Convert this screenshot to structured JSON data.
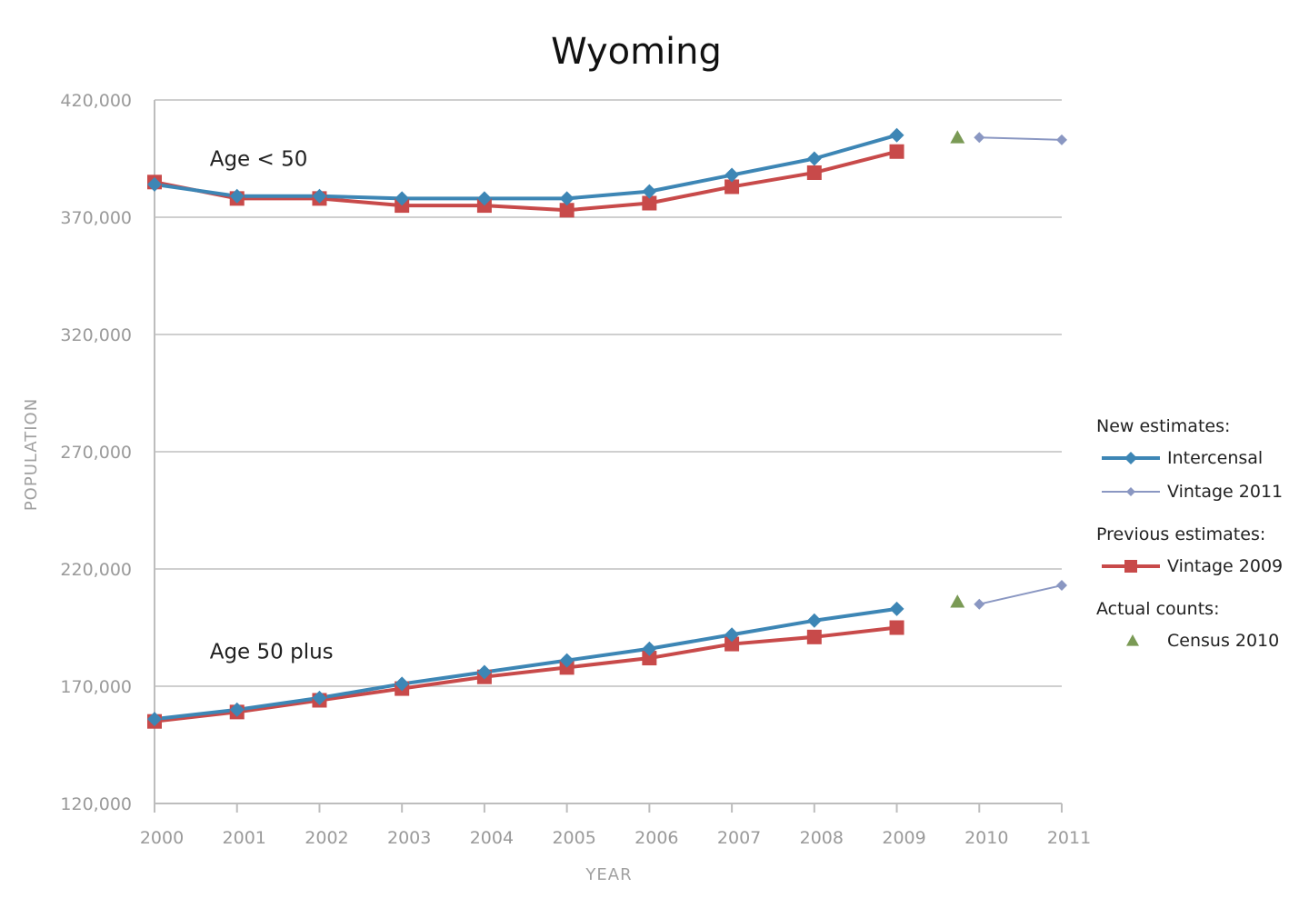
{
  "chart_data": {
    "type": "line",
    "title": "Wyoming",
    "xlabel": "YEAR",
    "ylabel": "POPULATION",
    "x": [
      "2000",
      "2001",
      "2002",
      "2003",
      "2004",
      "2005",
      "2006",
      "2007",
      "2008",
      "2009",
      "2010",
      "2011"
    ],
    "ylim": [
      120000,
      420000
    ],
    "yticks": [
      "420,000",
      "370,000",
      "320,000",
      "270,000",
      "220,000",
      "170,000",
      "120,000"
    ],
    "grid": true,
    "legend_position": "right",
    "legend": {
      "groups": [
        {
          "heading": "New estimates:",
          "items": [
            {
              "label": "Intercensal",
              "series": "intercensal"
            },
            {
              "label": "Vintage 2011",
              "series": "vintage2011"
            }
          ]
        },
        {
          "heading": "Previous estimates:",
          "items": [
            {
              "label": "Vintage 2009",
              "series": "vintage2009"
            }
          ]
        },
        {
          "heading": "Actual counts:",
          "items": [
            {
              "label": "Census 2010",
              "series": "census2010"
            }
          ]
        }
      ]
    },
    "annotations": [
      {
        "text": "Age < 50",
        "x": "2001",
        "y": 395000
      },
      {
        "text": "Age 50 plus",
        "x": "2001",
        "y": 185000
      }
    ],
    "colors": {
      "intercensal": "#3d86b5",
      "vintage2011": "#8a97c2",
      "vintage2009": "#c84a4a",
      "census2010": "#7a9a55",
      "grid": "#cfcfcf",
      "axis": "#bdbdbd"
    },
    "series": [
      {
        "key": "intercensal",
        "name": "Intercensal",
        "group": "Age < 50",
        "points": [
          {
            "x": "2000",
            "y": 384000
          },
          {
            "x": "2001",
            "y": 379000
          },
          {
            "x": "2002",
            "y": 379000
          },
          {
            "x": "2003",
            "y": 378000
          },
          {
            "x": "2004",
            "y": 378000
          },
          {
            "x": "2005",
            "y": 378000
          },
          {
            "x": "2006",
            "y": 381000
          },
          {
            "x": "2007",
            "y": 388000
          },
          {
            "x": "2008",
            "y": 395000
          },
          {
            "x": "2009",
            "y": 405000
          }
        ]
      },
      {
        "key": "vintage2009",
        "name": "Vintage 2009",
        "group": "Age < 50",
        "points": [
          {
            "x": "2000",
            "y": 385000
          },
          {
            "x": "2001",
            "y": 378000
          },
          {
            "x": "2002",
            "y": 378000
          },
          {
            "x": "2003",
            "y": 375000
          },
          {
            "x": "2004",
            "y": 375000
          },
          {
            "x": "2005",
            "y": 373000
          },
          {
            "x": "2006",
            "y": 376000
          },
          {
            "x": "2007",
            "y": 383000
          },
          {
            "x": "2008",
            "y": 389000
          },
          {
            "x": "2009",
            "y": 398000
          }
        ]
      },
      {
        "key": "vintage2011",
        "name": "Vintage 2011",
        "group": "Age < 50",
        "points": [
          {
            "x": "2010",
            "y": 404000
          },
          {
            "x": "2011",
            "y": 403000
          }
        ]
      },
      {
        "key": "census2010",
        "name": "Census 2010",
        "group": "Age < 50",
        "points": [
          {
            "x": "2010",
            "y": 404000
          }
        ]
      },
      {
        "key": "intercensal",
        "name": "Intercensal",
        "group": "Age 50 plus",
        "points": [
          {
            "x": "2000",
            "y": 156000
          },
          {
            "x": "2001",
            "y": 160000
          },
          {
            "x": "2002",
            "y": 165000
          },
          {
            "x": "2003",
            "y": 171000
          },
          {
            "x": "2004",
            "y": 176000
          },
          {
            "x": "2005",
            "y": 181000
          },
          {
            "x": "2006",
            "y": 186000
          },
          {
            "x": "2007",
            "y": 192000
          },
          {
            "x": "2008",
            "y": 198000
          },
          {
            "x": "2009",
            "y": 203000
          }
        ]
      },
      {
        "key": "vintage2009",
        "name": "Vintage 2009",
        "group": "Age 50 plus",
        "points": [
          {
            "x": "2000",
            "y": 155000
          },
          {
            "x": "2001",
            "y": 159000
          },
          {
            "x": "2002",
            "y": 164000
          },
          {
            "x": "2003",
            "y": 169000
          },
          {
            "x": "2004",
            "y": 174000
          },
          {
            "x": "2005",
            "y": 178000
          },
          {
            "x": "2006",
            "y": 182000
          },
          {
            "x": "2007",
            "y": 188000
          },
          {
            "x": "2008",
            "y": 191000
          },
          {
            "x": "2009",
            "y": 195000
          }
        ]
      },
      {
        "key": "vintage2011",
        "name": "Vintage 2011",
        "group": "Age 50 plus",
        "points": [
          {
            "x": "2010",
            "y": 205000
          },
          {
            "x": "2011",
            "y": 213000
          }
        ]
      },
      {
        "key": "census2010",
        "name": "Census 2010",
        "group": "Age 50 plus",
        "points": [
          {
            "x": "2010",
            "y": 206000
          }
        ]
      }
    ]
  }
}
